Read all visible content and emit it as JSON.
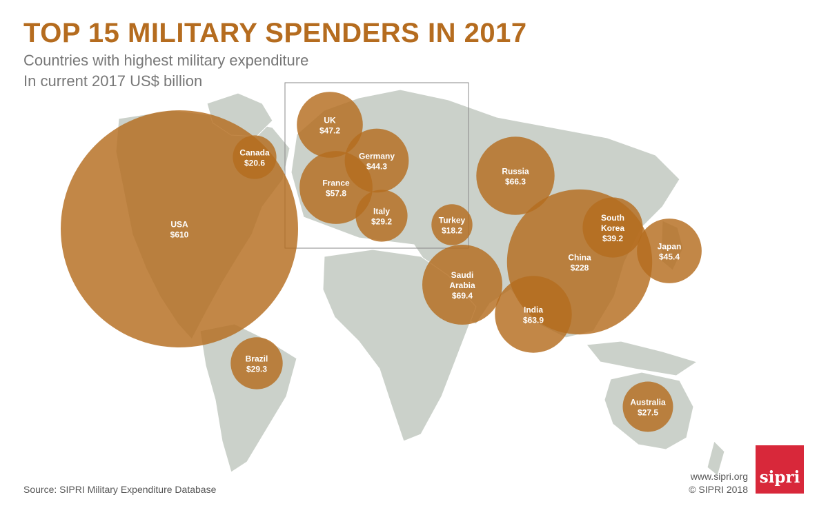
{
  "header": {
    "title": "TOP 15 MILITARY SPENDERS IN 2017",
    "subtitle_line1": "Countries with highest military expenditure",
    "subtitle_line2": "In current 2017 US$ billion"
  },
  "colors": {
    "bubble": "#b56c1f",
    "map_land": "#cbd1ca",
    "title": "#b56c1f",
    "logo_bg": "#d8283a"
  },
  "countries": [
    {
      "name": "USA",
      "value_label": "$610",
      "value": 610
    },
    {
      "name": "China",
      "value_label": "$228",
      "value": 228
    },
    {
      "name": "Saudi Arabia",
      "value_label": "$69.4",
      "value": 69.4
    },
    {
      "name": "Russia",
      "value_label": "$66.3",
      "value": 66.3
    },
    {
      "name": "India",
      "value_label": "$63.9",
      "value": 63.9
    },
    {
      "name": "France",
      "value_label": "$57.8",
      "value": 57.8
    },
    {
      "name": "UK",
      "value_label": "$47.2",
      "value": 47.2
    },
    {
      "name": "Japan",
      "value_label": "$45.4",
      "value": 45.4
    },
    {
      "name": "Germany",
      "value_label": "$44.3",
      "value": 44.3
    },
    {
      "name": "South Korea",
      "value_label": "$39.2",
      "value": 39.2
    },
    {
      "name": "Brazil",
      "value_label": "$29.3",
      "value": 29.3
    },
    {
      "name": "Italy",
      "value_label": "$29.2",
      "value": 29.2
    },
    {
      "name": "Australia",
      "value_label": "$27.5",
      "value": 27.5
    },
    {
      "name": "Canada",
      "value_label": "$20.6",
      "value": 20.6
    },
    {
      "name": "Turkey",
      "value_label": "$18.2",
      "value": 18.2
    }
  ],
  "footer": {
    "source": "Source: SIPRI Military Expenditure Database",
    "url": "www.sipri.org",
    "copyright": "© SIPRI 2018",
    "logo_text": "sipri"
  }
}
